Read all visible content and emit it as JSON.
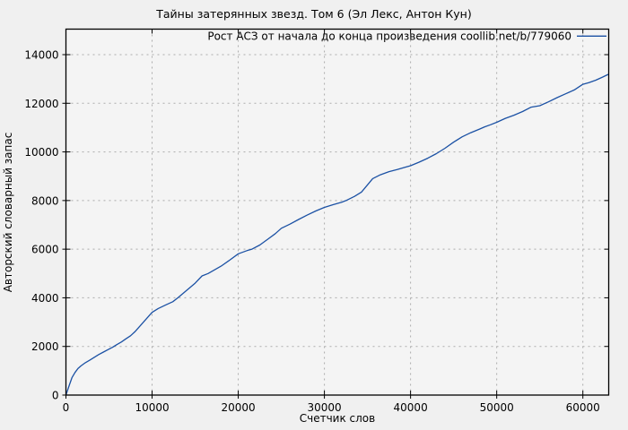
{
  "window": {
    "title": "Тайны затерянных звезд. Том 6 (Эл Лекс, Антон Кун)"
  },
  "colors": {
    "page_bg": "#f0f0f0",
    "plot_bg": "#f4f4f4",
    "grid": "#ababab",
    "axis": "#000000",
    "text": "#000000",
    "series_blue": "#1b51a4"
  },
  "chart_data": {
    "type": "line",
    "title": "Тайны затерянных звезд. Том 6 (Эл Лекс, Антон Кун)",
    "xlabel": "Счетчик слов",
    "ylabel": "Авторский словарный запас",
    "legend_position": "top-right-inside",
    "grid": true,
    "xlim": [
      0,
      63000
    ],
    "ylim": [
      0,
      15050
    ],
    "xticks": [
      0,
      10000,
      20000,
      30000,
      40000,
      50000,
      60000
    ],
    "yticks": [
      0,
      2000,
      4000,
      6000,
      8000,
      10000,
      12000,
      14000
    ],
    "series": [
      {
        "name": "Рост АСЗ от начала до конца произведения coollib.net/b/779060",
        "color": "#1b51a4",
        "points": [
          [
            0,
            0
          ],
          [
            350,
            370
          ],
          [
            700,
            715
          ],
          [
            1050,
            930
          ],
          [
            1400,
            1090
          ],
          [
            1750,
            1200
          ],
          [
            2250,
            1330
          ],
          [
            2800,
            1445
          ],
          [
            3300,
            1555
          ],
          [
            3800,
            1665
          ],
          [
            4350,
            1770
          ],
          [
            4850,
            1865
          ],
          [
            5400,
            1965
          ],
          [
            5900,
            2075
          ],
          [
            6450,
            2185
          ],
          [
            6950,
            2310
          ],
          [
            7500,
            2440
          ],
          [
            8000,
            2600
          ],
          [
            9000,
            3000
          ],
          [
            10000,
            3400
          ],
          [
            10700,
            3560
          ],
          [
            11600,
            3710
          ],
          [
            12400,
            3840
          ],
          [
            13000,
            4000
          ],
          [
            14000,
            4300
          ],
          [
            15000,
            4600
          ],
          [
            15800,
            4900
          ],
          [
            16500,
            5000
          ],
          [
            17000,
            5100
          ],
          [
            18000,
            5300
          ],
          [
            19000,
            5550
          ],
          [
            20000,
            5810
          ],
          [
            21000,
            5940
          ],
          [
            21600,
            6000
          ],
          [
            22500,
            6170
          ],
          [
            23500,
            6430
          ],
          [
            24300,
            6640
          ],
          [
            25000,
            6860
          ],
          [
            26000,
            7030
          ],
          [
            27000,
            7220
          ],
          [
            28000,
            7400
          ],
          [
            29000,
            7570
          ],
          [
            30000,
            7720
          ],
          [
            31000,
            7830
          ],
          [
            32000,
            7930
          ],
          [
            32500,
            8000
          ],
          [
            33500,
            8170
          ],
          [
            34300,
            8350
          ],
          [
            34800,
            8560
          ],
          [
            35600,
            8900
          ],
          [
            36500,
            9060
          ],
          [
            37500,
            9190
          ],
          [
            38500,
            9280
          ],
          [
            39300,
            9360
          ],
          [
            40000,
            9430
          ],
          [
            41000,
            9580
          ],
          [
            42000,
            9740
          ],
          [
            43000,
            9930
          ],
          [
            44000,
            10150
          ],
          [
            45000,
            10400
          ],
          [
            46000,
            10620
          ],
          [
            47000,
            10790
          ],
          [
            48000,
            10940
          ],
          [
            48600,
            11030
          ],
          [
            49300,
            11120
          ],
          [
            50000,
            11220
          ],
          [
            51000,
            11380
          ],
          [
            52000,
            11510
          ],
          [
            53000,
            11660
          ],
          [
            54000,
            11840
          ],
          [
            55000,
            11900
          ],
          [
            56000,
            12060
          ],
          [
            57000,
            12230
          ],
          [
            58000,
            12390
          ],
          [
            59000,
            12550
          ],
          [
            60000,
            12780
          ],
          [
            60700,
            12850
          ],
          [
            61500,
            12950
          ],
          [
            62300,
            13080
          ],
          [
            62950,
            13190
          ]
        ]
      }
    ]
  }
}
